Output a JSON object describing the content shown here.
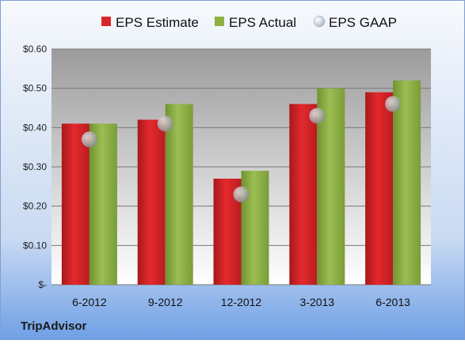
{
  "chart_data": {
    "type": "bar",
    "categories": [
      "6-2012",
      "9-2012",
      "12-2012",
      "3-2013",
      "6-2013"
    ],
    "series": [
      {
        "name": "EPS Estimate",
        "values": [
          0.41,
          0.42,
          0.27,
          0.46,
          0.49
        ],
        "color": "#d8262a"
      },
      {
        "name": "EPS Actual",
        "values": [
          0.41,
          0.46,
          0.29,
          0.5,
          0.52
        ],
        "color": "#8db042"
      },
      {
        "name": "EPS GAAP",
        "values": [
          0.37,
          0.41,
          0.23,
          0.43,
          0.46
        ],
        "color": "#b8b8b8",
        "marker": "circle"
      }
    ],
    "yticks": [
      "$-",
      "$0.10",
      "$0.20",
      "$0.30",
      "$0.40",
      "$0.50",
      "$0.60"
    ],
    "ylim": [
      0,
      0.6
    ],
    "grid": true,
    "legend_position": "top",
    "source_label": "TripAdvisor"
  }
}
